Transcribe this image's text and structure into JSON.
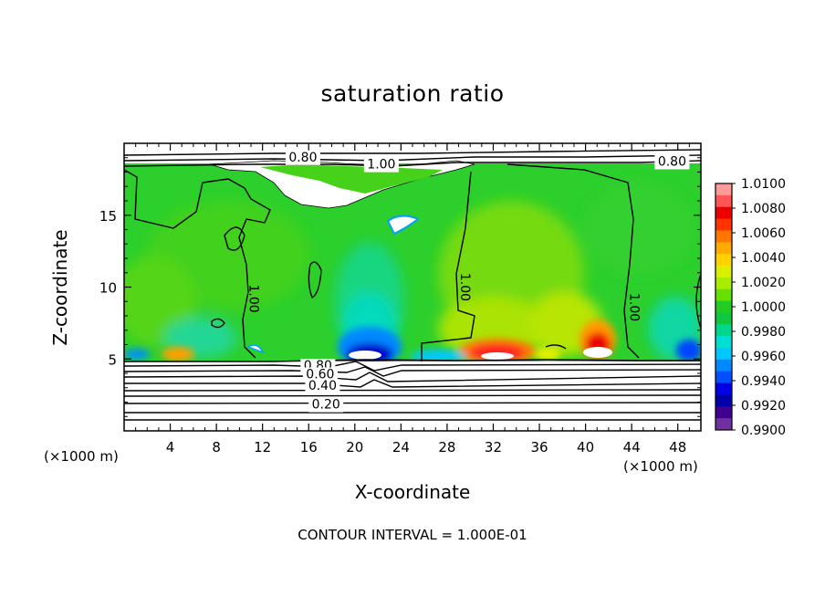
{
  "chart_data": {
    "type": "heatmap",
    "title": "saturation ratio",
    "xlabel": "X-coordinate",
    "ylabel": "Z-coordinate",
    "x_unit": "(×1000 m)",
    "xlim": [
      0,
      50
    ],
    "ylim": [
      0,
      20
    ],
    "x_ticks": [
      4,
      8,
      12,
      16,
      20,
      24,
      28,
      32,
      36,
      40,
      44,
      48
    ],
    "y_ticks": [
      5,
      10,
      15
    ],
    "footer": "CONTOUR INTERVAL = 1.000E-01",
    "colorbar": {
      "labels": [
        "1.0100",
        "1.0080",
        "1.0060",
        "1.0040",
        "1.0020",
        "1.0000",
        "0.9980",
        "0.9960",
        "0.9940",
        "0.9920",
        "0.9900"
      ],
      "colors": [
        "#ff9a9a",
        "#ff5555",
        "#ee0000",
        "#ff3300",
        "#ff7700",
        "#ffaa00",
        "#ffd200",
        "#d9f000",
        "#a8ec00",
        "#66e000",
        "#22cc22",
        "#10c840",
        "#00d890",
        "#00e0d0",
        "#00c8ff",
        "#0088ff",
        "#0050ff",
        "#0000e6",
        "#0000aa",
        "#400090",
        "#7030a0"
      ]
    },
    "contour_labels": [
      {
        "text": "0.80",
        "x": 15.5,
        "z": 19.0
      },
      {
        "text": "1.00",
        "x": 22.3,
        "z": 18.5
      },
      {
        "text": "0.80",
        "x": 47.5,
        "z": 18.7
      },
      {
        "text": "1.00",
        "x": 11.2,
        "z": 9.2
      },
      {
        "text": "1.00",
        "x": 29.5,
        "z": 10.0
      },
      {
        "text": "1.00",
        "x": 44.2,
        "z": 8.6
      },
      {
        "text": "0.80",
        "x": 16.8,
        "z": 4.5
      },
      {
        "text": "0.60",
        "x": 17.0,
        "z": 3.9
      },
      {
        "text": "0.40",
        "x": 17.2,
        "z": 3.1
      },
      {
        "text": "0.20",
        "x": 17.5,
        "z": 1.8
      }
    ]
  }
}
